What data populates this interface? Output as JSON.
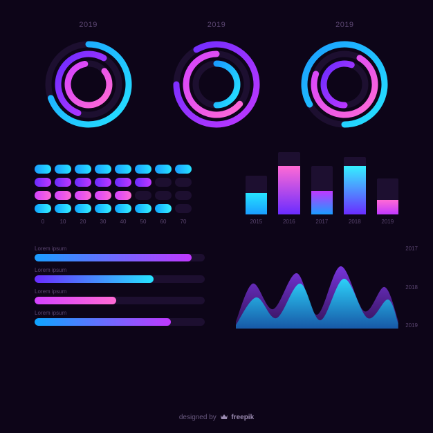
{
  "palette": {
    "bg": "#0d0518",
    "muted_track": "#1d0f30",
    "text_muted": "#5a4570",
    "grad_blue_start": "#1a9dff",
    "grad_blue_end": "#26e3ff",
    "grad_violet_start": "#6a2cff",
    "grad_violet_end": "#c038ff",
    "grad_pink_start": "#d442ff",
    "grad_pink_end": "#ff6ad5",
    "grad_cyan_start": "#0ea5ff",
    "grad_cyan_end": "#35f0ff"
  },
  "radials": [
    {
      "label": "2019",
      "rings": [
        {
          "r": 58,
          "start": -90,
          "sweep": 250,
          "stroke_w": 9,
          "gradient": "gradBlueCyan"
        },
        {
          "r": 44,
          "start": 110,
          "sweep": 190,
          "stroke_w": 9,
          "gradient": "gradViolet"
        },
        {
          "r": 30,
          "start": -40,
          "sweep": 300,
          "stroke_w": 9,
          "gradient": "gradPink"
        }
      ]
    },
    {
      "label": "2019",
      "rings": [
        {
          "r": 58,
          "start": -120,
          "sweep": 300,
          "stroke_w": 9,
          "gradient": "gradViolet"
        },
        {
          "r": 44,
          "start": 40,
          "sweep": 230,
          "stroke_w": 9,
          "gradient": "gradPink"
        },
        {
          "r": 30,
          "start": -90,
          "sweep": 180,
          "stroke_w": 9,
          "gradient": "gradBlueCyan"
        }
      ]
    },
    {
      "label": "2019",
      "rings": [
        {
          "r": 58,
          "start": 150,
          "sweep": 300,
          "stroke_w": 9,
          "gradient": "gradBlueCyan"
        },
        {
          "r": 44,
          "start": -60,
          "sweep": 260,
          "stroke_w": 9,
          "gradient": "gradPink"
        },
        {
          "r": 30,
          "start": 90,
          "sweep": 200,
          "stroke_w": 9,
          "gradient": "gradViolet"
        }
      ]
    }
  ],
  "lozenge_chart": {
    "rows": 4,
    "cols": 8,
    "x_labels": [
      "0",
      "10",
      "20",
      "30",
      "40",
      "50",
      "60",
      "70"
    ],
    "on_gradients": {
      "0": "linear-gradient(90deg,#1a9dff,#26e3ff)",
      "1": "linear-gradient(90deg,#6a2cff,#c038ff)",
      "2": "linear-gradient(90deg,#d442ff,#ff6ad5)",
      "3": "linear-gradient(90deg,#0ea5ff,#35f0ff)"
    },
    "filled_per_row": [
      8,
      6,
      5,
      7
    ]
  },
  "bar_chart": {
    "categories": [
      "2015",
      "2016",
      "2017",
      "2018",
      "2019"
    ],
    "bg_heights_pct": [
      62,
      100,
      78,
      92,
      58
    ],
    "fill_heights_pct": [
      55,
      78,
      48,
      85,
      40
    ],
    "fill_gradients": [
      "linear-gradient(180deg,#26e3ff,#1a9dff)",
      "linear-gradient(180deg,#ff6ad5,#6a2cff)",
      "linear-gradient(180deg,#c038ff,#1a9dff)",
      "linear-gradient(180deg,#35f0ff,#6a2cff)",
      "linear-gradient(180deg,#ff6ad5,#c038ff)"
    ]
  },
  "hbars": [
    {
      "label": "Lorem ipsum",
      "pct": 92,
      "gradient": "linear-gradient(90deg,#1a9dff,#c038ff)"
    },
    {
      "label": "Lorem ipsum",
      "pct": 70,
      "gradient": "linear-gradient(90deg,#6a2cff,#26e3ff)"
    },
    {
      "label": "Lorem ipsum",
      "pct": 48,
      "gradient": "linear-gradient(90deg,#d442ff,#ff6ad5)"
    },
    {
      "label": "Lorem ipsum",
      "pct": 80,
      "gradient": "linear-gradient(90deg,#0ea5ff,#c038ff)"
    }
  ],
  "area_chart": {
    "y_labels": [
      "2017",
      "2018",
      "2019"
    ],
    "viewbox_w": 240,
    "viewbox_h": 120,
    "series": [
      {
        "fill_gradient": "gradAreaViolet",
        "opacity": 0.85,
        "points": [
          [
            0,
            110
          ],
          [
            25,
            55
          ],
          [
            55,
            92
          ],
          [
            90,
            40
          ],
          [
            120,
            100
          ],
          [
            155,
            30
          ],
          [
            190,
            95
          ],
          [
            220,
            60
          ],
          [
            240,
            108
          ],
          [
            240,
            120
          ],
          [
            0,
            120
          ]
        ]
      },
      {
        "fill_gradient": "gradAreaCyan",
        "opacity": 0.9,
        "points": [
          [
            0,
            115
          ],
          [
            30,
            75
          ],
          [
            60,
            105
          ],
          [
            95,
            55
          ],
          [
            125,
            108
          ],
          [
            160,
            48
          ],
          [
            195,
            105
          ],
          [
            225,
            78
          ],
          [
            240,
            112
          ],
          [
            240,
            120
          ],
          [
            0,
            120
          ]
        ]
      }
    ]
  },
  "footer": {
    "prefix": "designed by ",
    "brand": "freepik"
  }
}
